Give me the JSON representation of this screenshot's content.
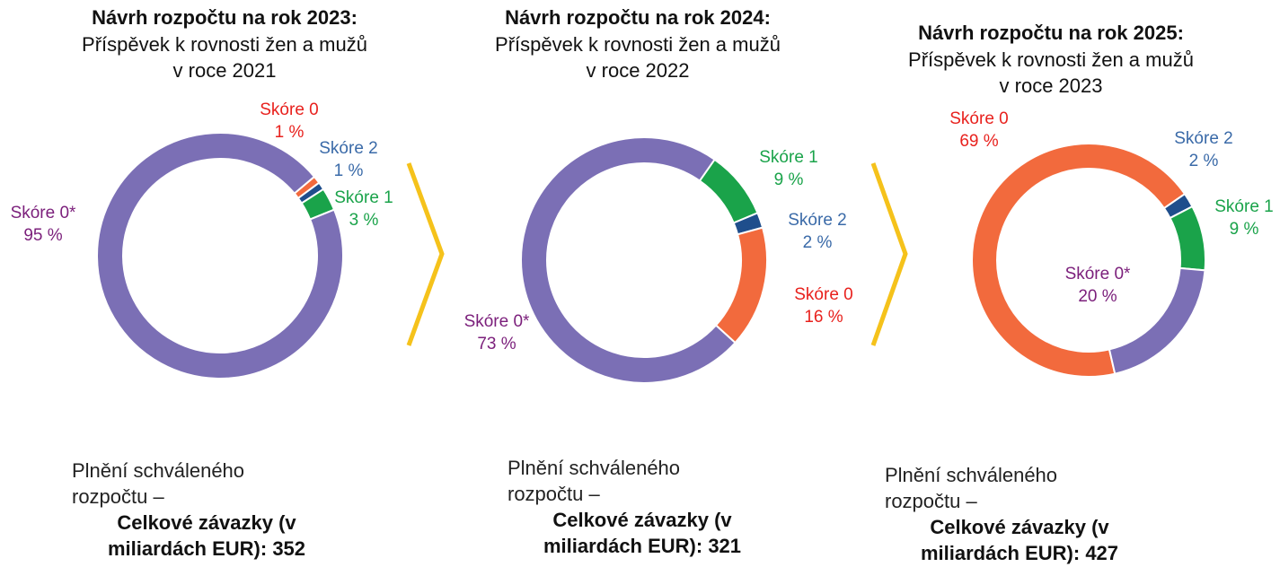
{
  "chart_data": [
    {
      "type": "pie",
      "title": "Návrh rozpočtu na rok 2023:",
      "subtitle": "Příspěvek k rovnosti žen a mužů v roce 2021",
      "categories": [
        "Skóre 0",
        "Skóre 2",
        "Skóre 1",
        "Skóre 0*"
      ],
      "values": [
        1,
        1,
        3,
        95
      ],
      "value_labels": [
        "1 %",
        "1 %",
        "3 %",
        "95 %"
      ],
      "colors": [
        "#f26a3d",
        "#1f4e8c",
        "#1aa34a",
        "#7b6fb5"
      ],
      "label_colors": [
        "#e8211d",
        "#3a6aa8",
        "#1aa34a",
        "#7b1f7b"
      ],
      "footer": "Plnění schváleného rozpočtu –",
      "total": "Celkové závazky (v miliardách EUR): 352"
    },
    {
      "type": "pie",
      "title": "Návrh rozpočtu na rok 2024:",
      "subtitle": "Příspěvek k rovnosti žen a mužů v roce 2022",
      "categories": [
        "Skóre 1",
        "Skóre 2",
        "Skóre 0",
        "Skóre 0*"
      ],
      "values": [
        9,
        2,
        16,
        73
      ],
      "value_labels": [
        "9 %",
        "2 %",
        "16 %",
        "73 %"
      ],
      "colors": [
        "#1aa34a",
        "#1f4e8c",
        "#f26a3d",
        "#7b6fb5"
      ],
      "label_colors": [
        "#1aa34a",
        "#3a6aa8",
        "#e8211d",
        "#7b1f7b"
      ],
      "footer": "Plnění schváleného rozpočtu –",
      "total": "Celkové závazky (v miliardách EUR): 321"
    },
    {
      "type": "pie",
      "title": "Návrh rozpočtu na rok 2025:",
      "subtitle": "Příspěvek k rovnosti žen a mužů v roce 2023",
      "categories": [
        "Skóre 0",
        "Skóre 2",
        "Skóre 1",
        "Skóre 0*"
      ],
      "values": [
        69,
        2,
        9,
        20
      ],
      "value_labels": [
        "69 %",
        "2 %",
        "9 %",
        "20 %"
      ],
      "colors": [
        "#f26a3d",
        "#1f4e8c",
        "#1aa34a",
        "#7b6fb5"
      ],
      "label_colors": [
        "#e8211d",
        "#3a6aa8",
        "#1aa34a",
        "#7b1f7b"
      ],
      "footer": "Plnění schváleného rozpočtu –",
      "total": "Celkové závazky (v miliardách EUR): 427"
    }
  ]
}
